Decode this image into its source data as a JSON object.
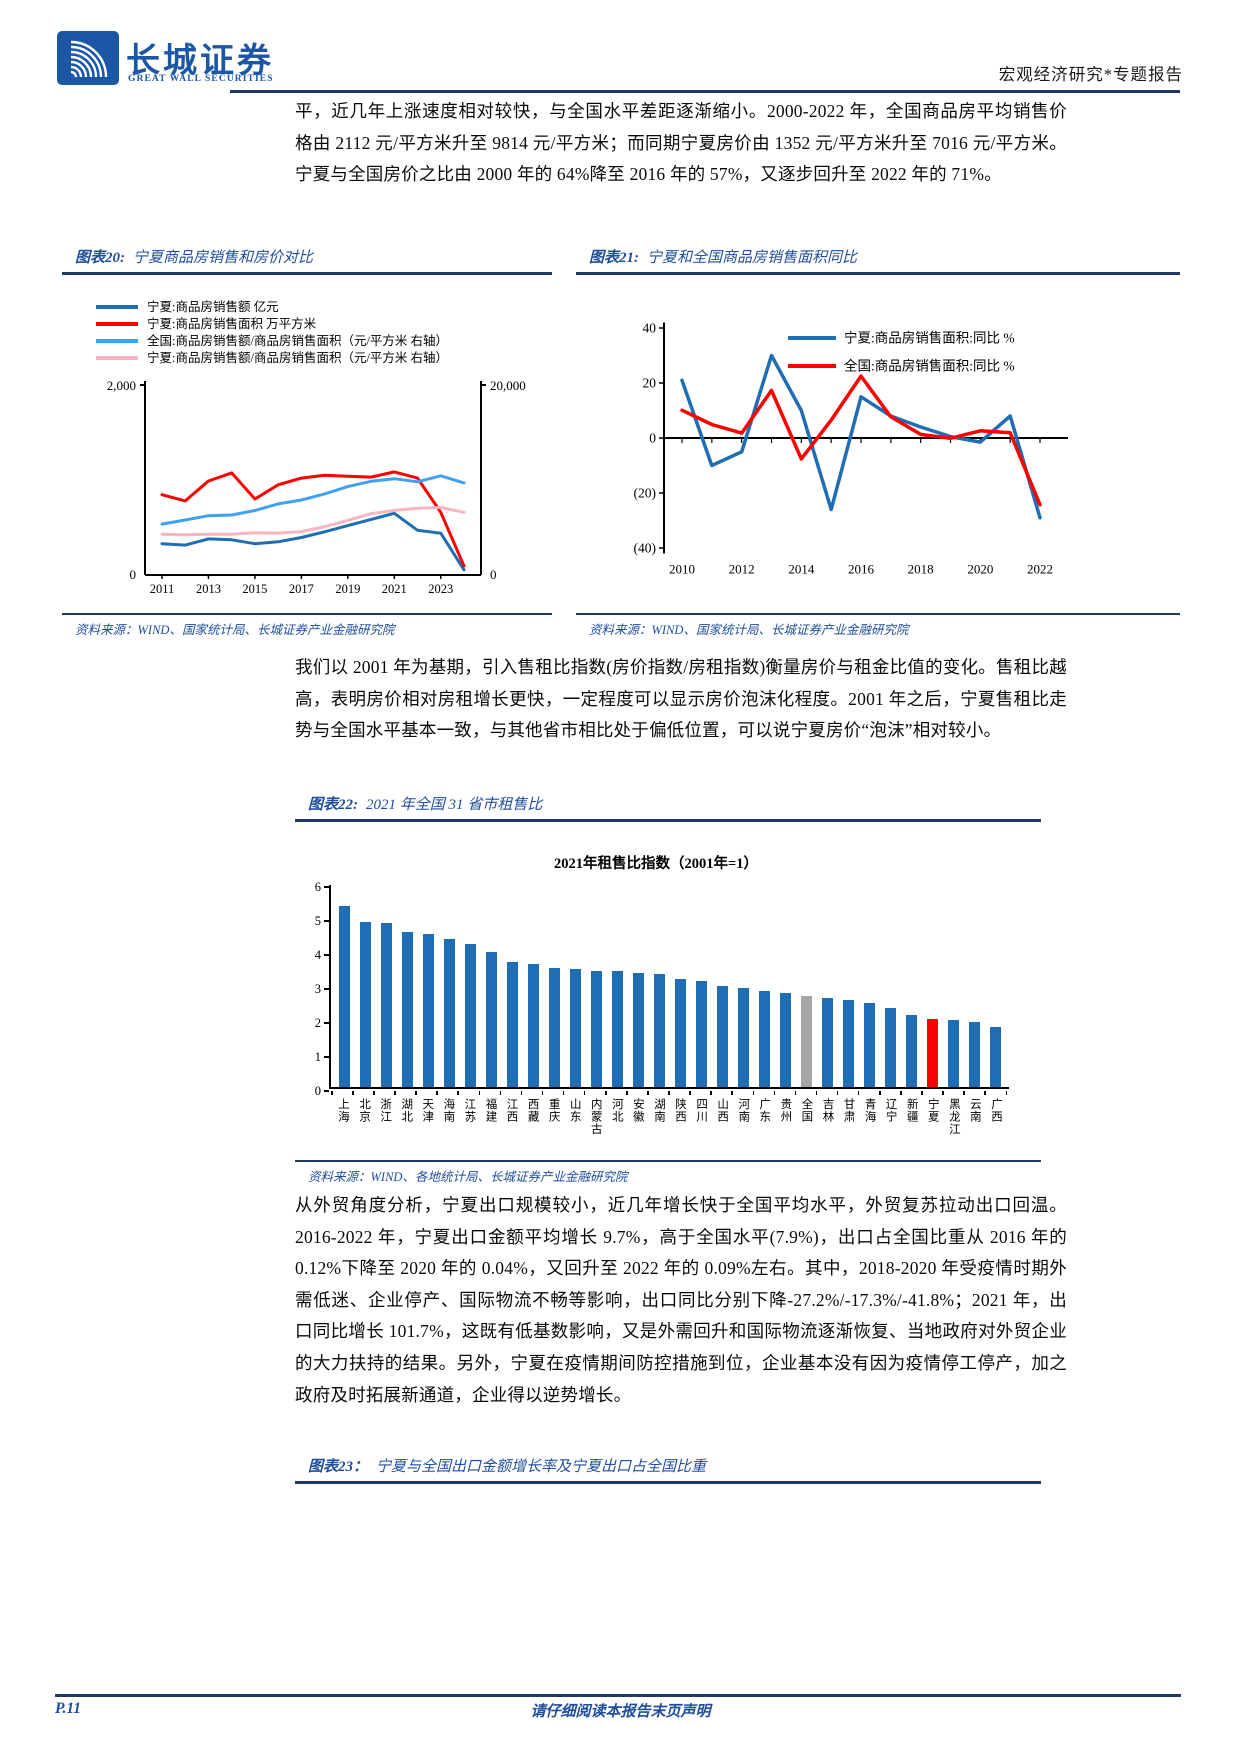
{
  "header": {
    "logo_cn": "长城证券",
    "logo_en": "GREAT WALL SECURITIES",
    "report_type": "宏观经济研究*专题报告"
  },
  "paragraphs": {
    "p1": "平，近几年上涨速度相对较快，与全国水平差距逐渐缩小。2000-2022 年，全国商品房平均销售价格由 2112 元/平方米升至 9814 元/平方米；而同期宁夏房价由 1352 元/平方米升至 7016 元/平方米。宁夏与全国房价之比由 2000 年的 64%降至 2016 年的 57%，又逐步回升至 2022 年的 71%。",
    "p2": "我们以 2001 年为基期，引入售租比指数(房价指数/房租指数)衡量房价与租金比值的变化。售租比越高，表明房价相对房租增长更快，一定程度可以显示房价泡沫化程度。2001 年之后，宁夏售租比走势与全国水平基本一致，与其他省市相比处于偏低位置，可以说宁夏房价“泡沫”相对较小。",
    "p3": "从外贸角度分析，宁夏出口规模较小，近几年增长快于全国平均水平，外贸复苏拉动出口回温。2016-2022 年，宁夏出口金额平均增长 9.7%，高于全国水平(7.9%)，出口占全国比重从 2016 年的 0.12%下降至 2020 年的 0.04%，又回升至 2022 年的 0.09%左右。其中，2018-2020 年受疫情时期外需低迷、企业停产、国际物流不畅等影响，出口同比分别下降-27.2%/-17.3%/-41.8%；2021 年，出口同比增长 101.7%，这既有低基数影响，又是外需回升和国际物流逐渐恢复、当地政府对外贸企业的大力扶持的结果。另外，宁夏在疫情期间防控措施到位，企业基本没有因为疫情停工停产，加之政府及时拓展新通道，企业得以逆势增长。"
  },
  "figure20": {
    "label": "图表20:",
    "title": "宁夏商品房销售和房价对比",
    "source": "资料来源：WIND、国家统计局、长城证券产业金融研究院"
  },
  "figure21": {
    "label": "图表21:",
    "title": "宁夏和全国商品房销售面积同比",
    "source": "资料来源：WIND、国家统计局、长城证券产业金融研究院"
  },
  "figure22": {
    "label": "图表22:",
    "title": "2021 年全国 31 省市租售比",
    "source": "资料来源：WIND、各地统计局、长城证券产业金融研究院"
  },
  "figure23": {
    "label": "图表23：",
    "title": "宁夏与全国出口金额增长率及宁夏出口占全国比重"
  },
  "footer": {
    "page": "P.11",
    "disclaimer": "请仔细阅读本报告末页声明"
  },
  "chart_data": [
    {
      "type": "line",
      "figure": "图表20",
      "title": "宁夏商品房销售和房价对比",
      "x": [
        2011,
        2012,
        2013,
        2014,
        2015,
        2016,
        2017,
        2018,
        2019,
        2020,
        2021,
        2022,
        2023,
        2024
      ],
      "x_ticks": [
        2011,
        2013,
        2015,
        2017,
        2019,
        2021,
        2023
      ],
      "ylim_left": [
        0,
        2000
      ],
      "ylim_right": [
        0,
        20000
      ],
      "ytick_left": [
        "2,000",
        "0"
      ],
      "ytick_right": [
        "20,000",
        "0"
      ],
      "legend_position": "top-left",
      "grid": false,
      "series": [
        {
          "name": "宁夏:商品房销售额 亿元",
          "axis": "left",
          "color": "#1F6EB5",
          "values": [
            330,
            315,
            380,
            370,
            330,
            350,
            395,
            455,
            520,
            585,
            650,
            470,
            440,
            55
          ]
        },
        {
          "name": "宁夏:商品房销售面积 万平方米",
          "axis": "left",
          "color": "#FF0000",
          "values": [
            845,
            780,
            990,
            1075,
            800,
            950,
            1020,
            1050,
            1040,
            1030,
            1085,
            1020,
            660,
            95
          ]
        },
        {
          "name": "全国:商品房销售额/商品房销售面积（元/平方米 右轴）",
          "axis": "right",
          "color": "#41A0F0",
          "values": [
            5360,
            5790,
            6240,
            6320,
            6790,
            7480,
            7890,
            8540,
            9310,
            9860,
            10140,
            9810,
            10440,
            9700
          ]
        },
        {
          "name": "宁夏:商品房销售额/商品房销售面积（元/平方米 右轴）",
          "axis": "right",
          "color": "#F7B6BE",
          "values": [
            4280,
            4230,
            4300,
            4290,
            4440,
            4410,
            4570,
            5090,
            5750,
            6450,
            6800,
            7020,
            7110,
            6600
          ]
        }
      ]
    },
    {
      "type": "line",
      "figure": "图表21",
      "title": "宁夏和全国商品房销售面积同比",
      "x": [
        2010,
        2011,
        2012,
        2013,
        2014,
        2015,
        2016,
        2017,
        2018,
        2019,
        2020,
        2021,
        2022
      ],
      "x_ticks": [
        2010,
        2012,
        2014,
        2016,
        2018,
        2020,
        2022
      ],
      "ylim": [
        -40,
        40
      ],
      "yticks": [
        {
          "v": 40,
          "label": "40"
        },
        {
          "v": 20,
          "label": "20"
        },
        {
          "v": 0,
          "label": "0"
        },
        {
          "v": -20,
          "label": "(20)"
        },
        {
          "v": -40,
          "label": "(40)"
        }
      ],
      "negative_tick_color": "#FF0000",
      "legend_position": "top-right",
      "grid": false,
      "series": [
        {
          "name": "宁夏:商品房销售面积:同比 %",
          "color": "#1F6EB5",
          "values": [
            21,
            -10,
            -5,
            30,
            10,
            -26,
            15,
            8,
            4,
            0.5,
            -1.5,
            8,
            -29
          ]
        },
        {
          "name": "全国:商品房销售面积:同比 %",
          "color": "#FF0000",
          "values": [
            10.1,
            4.9,
            1.8,
            17.3,
            -7.6,
            6.5,
            22.5,
            7.7,
            1.3,
            -0.1,
            2.6,
            1.9,
            -24.3
          ]
        }
      ]
    },
    {
      "type": "bar",
      "figure": "图表22",
      "title": "2021年租售比指数（2001年=1）",
      "ylim": [
        0,
        6
      ],
      "yticks": [
        0,
        1,
        2,
        3,
        4,
        5,
        6
      ],
      "categories": [
        "上海",
        "北京",
        "浙江",
        "湖北",
        "天津",
        "海南",
        "江苏",
        "福建",
        "江西",
        "西藏",
        "重庆",
        "山东",
        "内蒙古",
        "河北",
        "安徽",
        "湖南",
        "陕西",
        "四川",
        "山西",
        "河南",
        "广东",
        "贵州",
        "全国",
        "吉林",
        "甘肃",
        "青海",
        "辽宁",
        "新疆",
        "宁夏",
        "黑龙江",
        "云南",
        "广西"
      ],
      "values": [
        5.3,
        4.85,
        4.8,
        4.55,
        4.5,
        4.35,
        4.2,
        3.95,
        3.65,
        3.6,
        3.5,
        3.45,
        3.4,
        3.4,
        3.35,
        3.3,
        3.15,
        3.1,
        2.95,
        2.9,
        2.8,
        2.75,
        2.65,
        2.6,
        2.55,
        2.45,
        2.3,
        2.1,
        2.0,
        1.95,
        1.9,
        1.75
      ],
      "bar_colors": {
        "default": "#1F6EB5",
        "全国": "#A6A6A6",
        "宁夏": "#FF0000"
      }
    }
  ]
}
